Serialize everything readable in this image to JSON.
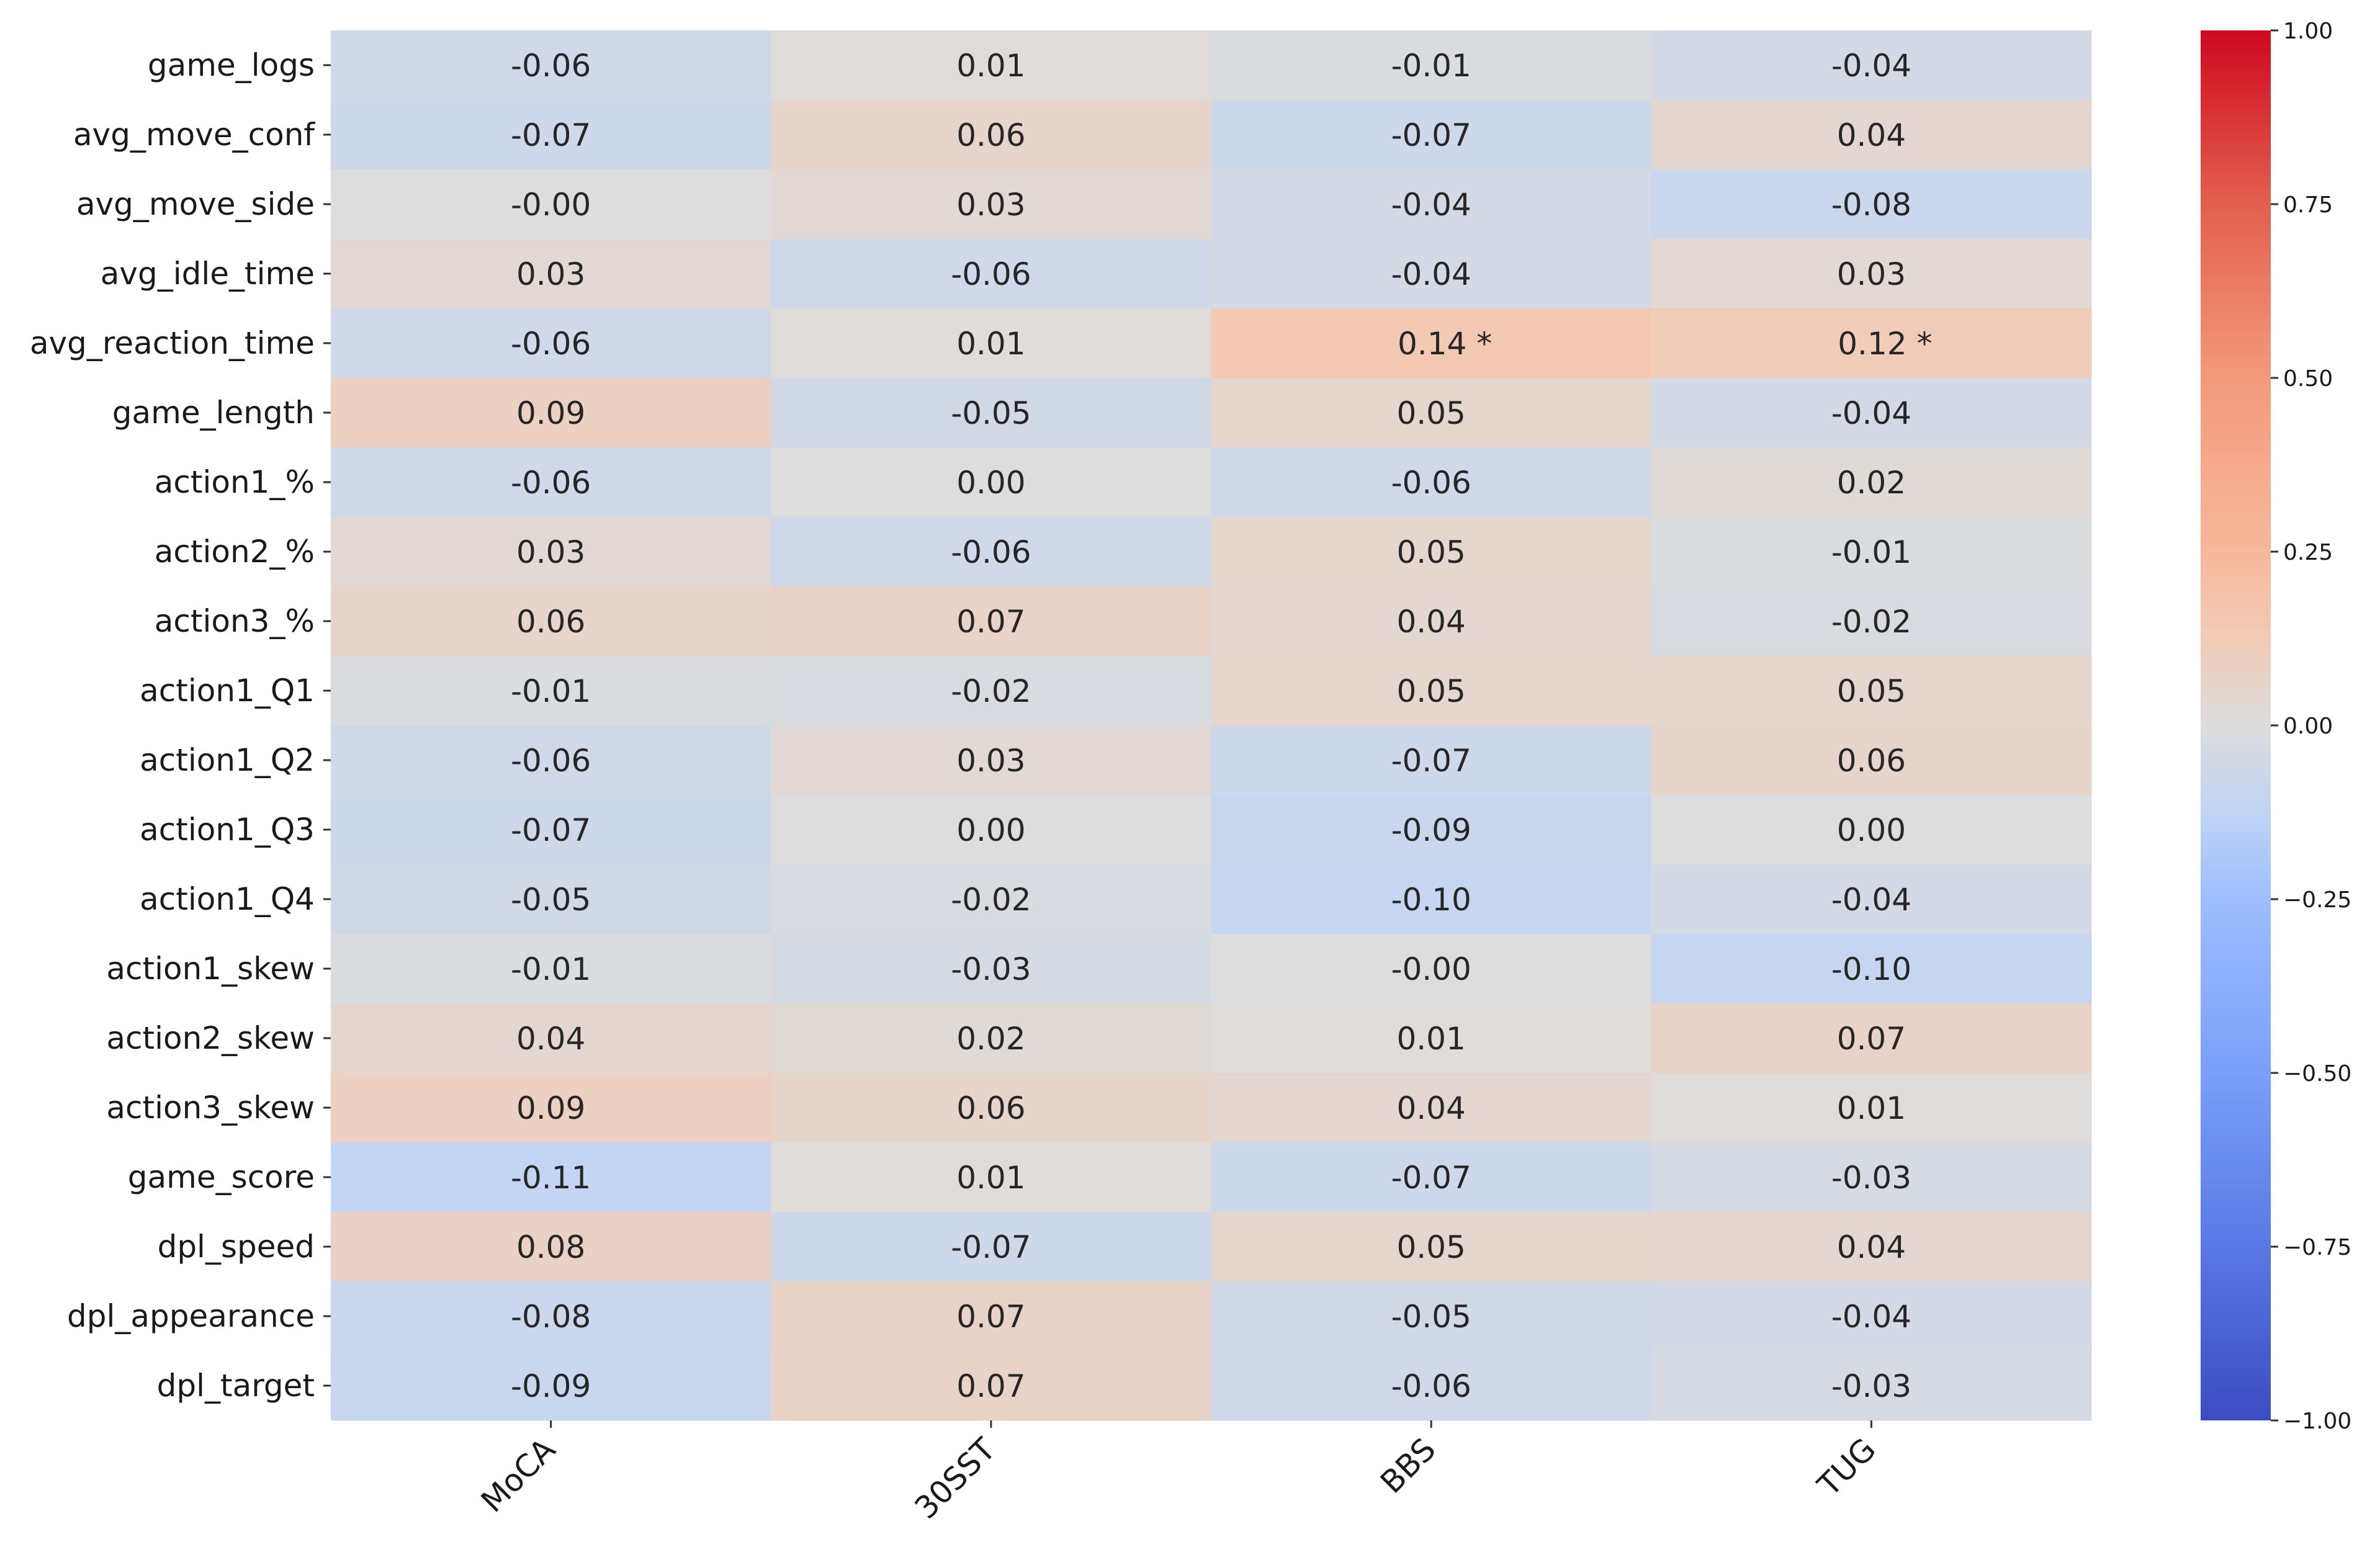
{
  "chart_data": {
    "type": "heatmap",
    "title": "",
    "xlabel": "",
    "ylabel": "",
    "colormap": "coolwarm",
    "vmin": -1.0,
    "vmax": 1.0,
    "columns": [
      "MoCA",
      "30SST",
      "BBS",
      "TUG"
    ],
    "rows": [
      "game_logs",
      "avg_move_conf",
      "avg_move_side",
      "avg_idle_time",
      "avg_reaction_time",
      "game_length",
      "action1_%",
      "action2_%",
      "action3_%",
      "action1_Q1",
      "action1_Q2",
      "action1_Q3",
      "action1_Q4",
      "action1_skew",
      "action2_skew",
      "action3_skew",
      "game_score",
      "dpl_speed",
      "dpl_appearance",
      "dpl_target"
    ],
    "values": [
      [
        -0.06,
        0.01,
        -0.01,
        -0.04
      ],
      [
        -0.07,
        0.06,
        -0.07,
        0.04
      ],
      [
        -0.0,
        0.03,
        -0.04,
        -0.08
      ],
      [
        0.03,
        -0.06,
        -0.04,
        0.03
      ],
      [
        -0.06,
        0.01,
        0.14,
        0.12
      ],
      [
        0.09,
        -0.05,
        0.05,
        -0.04
      ],
      [
        -0.06,
        0.0,
        -0.06,
        0.02
      ],
      [
        0.03,
        -0.06,
        0.05,
        -0.01
      ],
      [
        0.06,
        0.07,
        0.04,
        -0.02
      ],
      [
        -0.01,
        -0.02,
        0.05,
        0.05
      ],
      [
        -0.06,
        0.03,
        -0.07,
        0.06
      ],
      [
        -0.07,
        0.0,
        -0.09,
        0.0
      ],
      [
        -0.05,
        -0.02,
        -0.1,
        -0.04
      ],
      [
        -0.01,
        -0.03,
        -0.0,
        -0.1
      ],
      [
        0.04,
        0.02,
        0.01,
        0.07
      ],
      [
        0.09,
        0.06,
        0.04,
        0.01
      ],
      [
        -0.11,
        0.01,
        -0.07,
        -0.03
      ],
      [
        0.08,
        -0.07,
        0.05,
        0.04
      ],
      [
        -0.08,
        0.07,
        -0.05,
        -0.04
      ],
      [
        -0.09,
        0.07,
        -0.06,
        -0.03
      ]
    ],
    "annotations": [
      [
        "-0.06",
        "0.01",
        "-0.01",
        "-0.04"
      ],
      [
        "-0.07",
        "0.06",
        "-0.07",
        "0.04"
      ],
      [
        "-0.00",
        "0.03",
        "-0.04",
        "-0.08"
      ],
      [
        "0.03",
        "-0.06",
        "-0.04",
        "0.03"
      ],
      [
        "-0.06",
        "0.01",
        "0.14 *",
        "0.12 *"
      ],
      [
        "0.09",
        "-0.05",
        "0.05",
        "-0.04"
      ],
      [
        "-0.06",
        "0.00",
        "-0.06",
        "0.02"
      ],
      [
        "0.03",
        "-0.06",
        "0.05",
        "-0.01"
      ],
      [
        "0.06",
        "0.07",
        "0.04",
        "-0.02"
      ],
      [
        "-0.01",
        "-0.02",
        "0.05",
        "0.05"
      ],
      [
        "-0.06",
        "0.03",
        "-0.07",
        "0.06"
      ],
      [
        "-0.07",
        "0.00",
        "-0.09",
        "0.00"
      ],
      [
        "-0.05",
        "-0.02",
        "-0.10",
        "-0.04"
      ],
      [
        "-0.01",
        "-0.03",
        "-0.00",
        "-0.10"
      ],
      [
        "0.04",
        "0.02",
        "0.01",
        "0.07"
      ],
      [
        "0.09",
        "0.06",
        "0.04",
        "0.01"
      ],
      [
        "-0.11",
        "0.01",
        "-0.07",
        "-0.03"
      ],
      [
        "0.08",
        "-0.07",
        "0.05",
        "0.04"
      ],
      [
        "-0.08",
        "0.07",
        "-0.05",
        "-0.04"
      ],
      [
        "-0.09",
        "0.07",
        "-0.06",
        "-0.03"
      ]
    ],
    "colorbar": {
      "ticks": [
        1.0,
        0.75,
        0.5,
        0.25,
        0.0,
        -0.25,
        -0.5,
        -0.75,
        -1.0
      ],
      "tick_labels": [
        "1.00",
        "0.75",
        "0.50",
        "0.25",
        "0.00",
        "−0.25",
        "−0.50",
        "−0.75",
        "−1.00"
      ]
    },
    "grid": false,
    "legend": "colorbar-right"
  }
}
